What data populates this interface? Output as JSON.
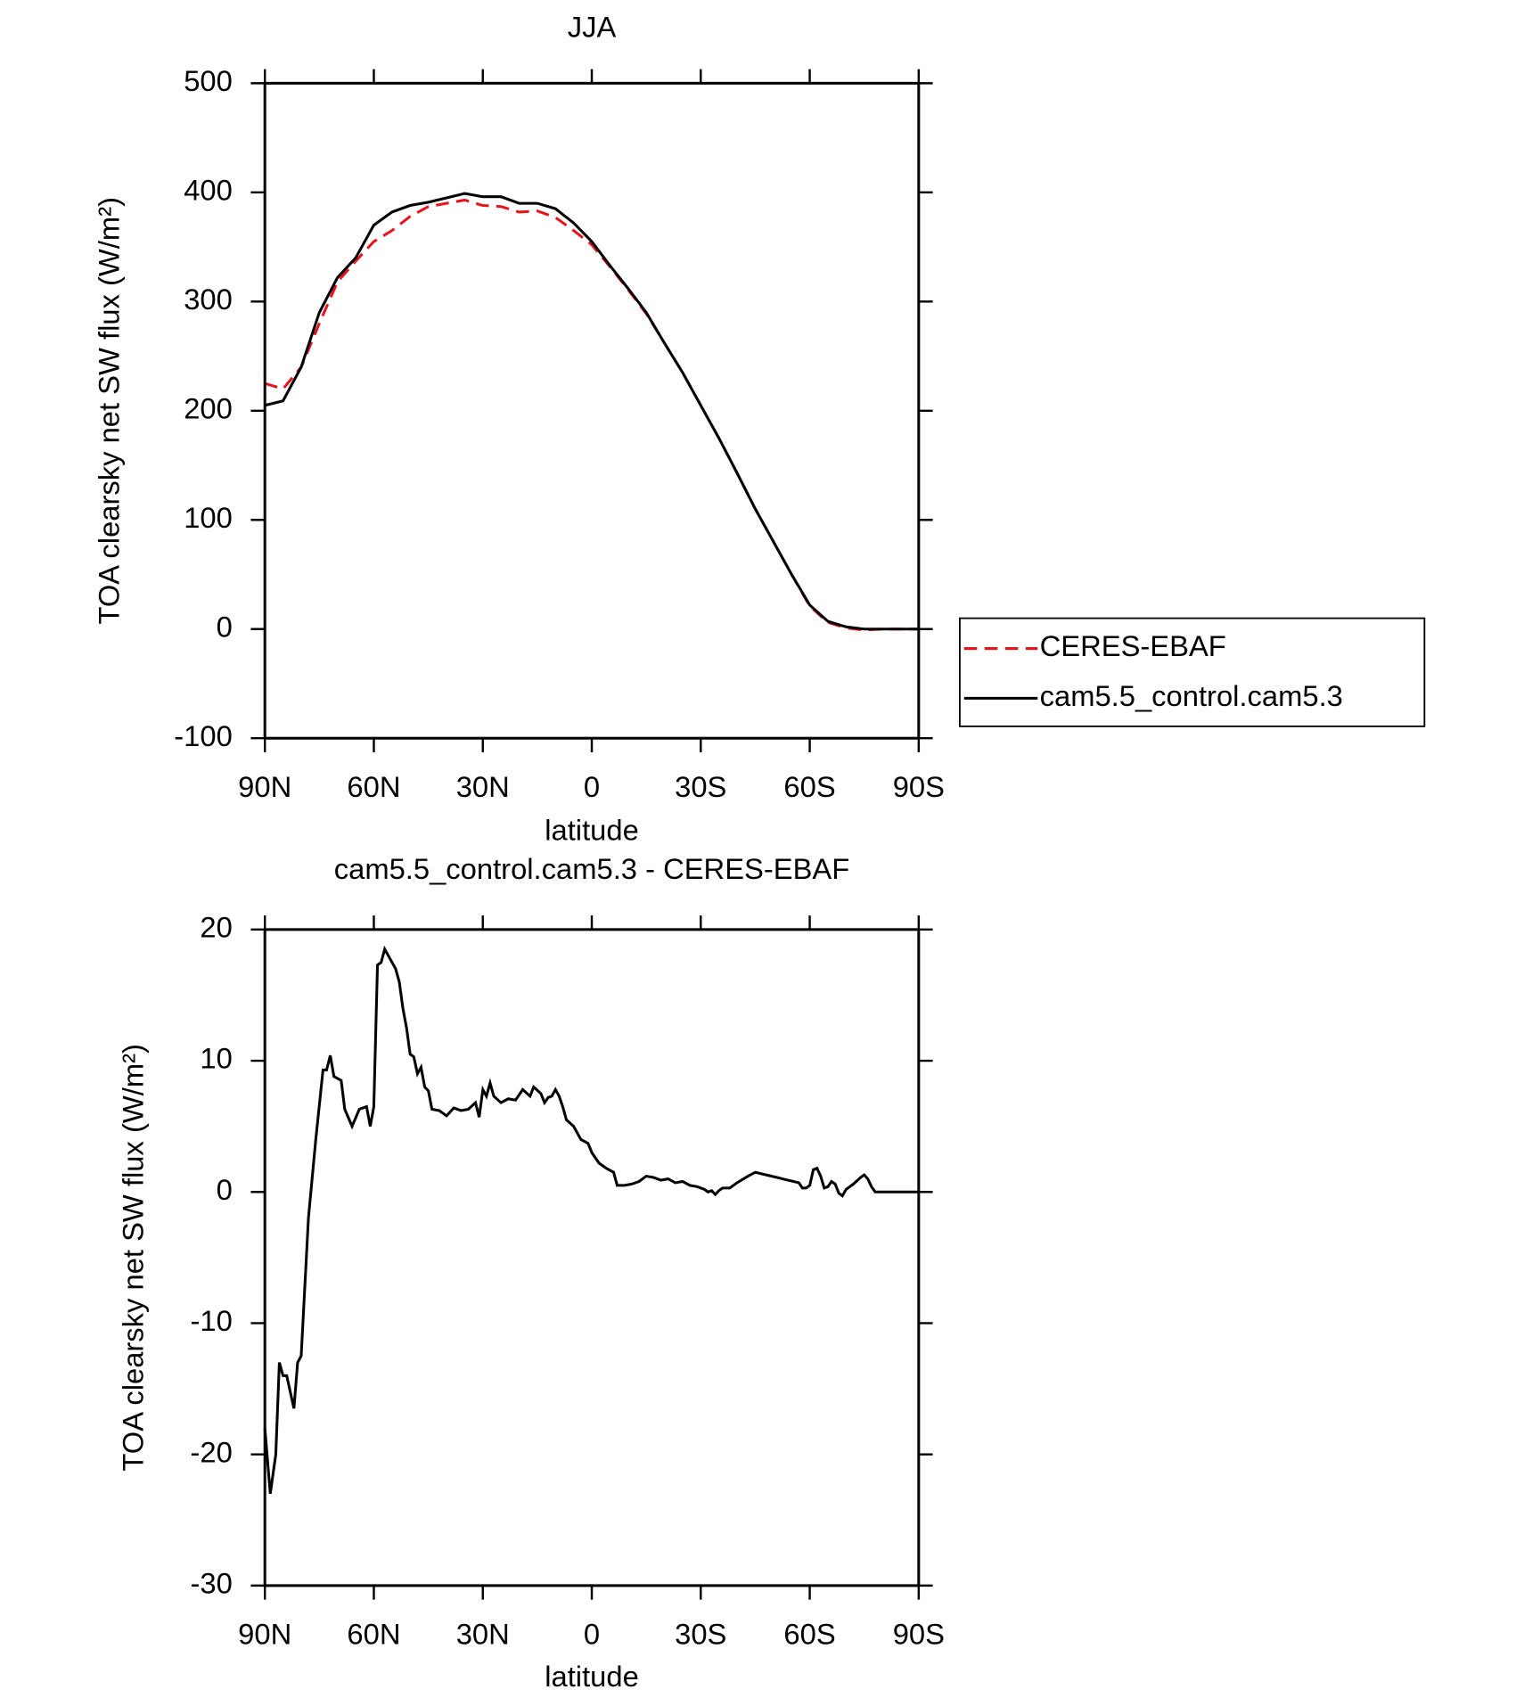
{
  "chart_data": [
    {
      "type": "line",
      "title": "JJA",
      "xlabel": "latitude",
      "ylabel": "TOA clearsky net SW flux (W/m²)",
      "x": [
        90,
        85,
        80,
        75,
        70,
        65,
        60,
        55,
        50,
        45,
        40,
        35,
        30,
        25,
        20,
        15,
        10,
        5,
        0,
        -5,
        -10,
        -15,
        -20,
        -25,
        -30,
        -35,
        -40,
        -45,
        -50,
        -55,
        -60,
        -65,
        -70,
        -75,
        -80,
        -85,
        -90
      ],
      "xlim": [
        90,
        -90
      ],
      "xticks": [
        {
          "value": 90,
          "label": "90N"
        },
        {
          "value": 60,
          "label": "60N"
        },
        {
          "value": 30,
          "label": "30N"
        },
        0,
        {
          "value": -30,
          "label": "30S"
        },
        {
          "value": -60,
          "label": "60S"
        },
        {
          "value": -90,
          "label": "90S"
        }
      ],
      "ylim": [
        -100,
        500
      ],
      "yticks": [
        -100,
        0,
        100,
        200,
        300,
        400,
        500
      ],
      "legend": "outside-right",
      "series": [
        {
          "name": "CERES-EBAF",
          "color": "#e8141c",
          "dash": true,
          "values": [
            225,
            220,
            240,
            280,
            318,
            337,
            355,
            365,
            378,
            387,
            390,
            393,
            388,
            387,
            382,
            383,
            377,
            365,
            352,
            332,
            311,
            289,
            262,
            235,
            205,
            175,
            143,
            110,
            80,
            50,
            21,
            6,
            1,
            -1,
            0,
            0,
            0
          ]
        },
        {
          "name": "cam5.5_control.cam5.3",
          "color": "#000000",
          "dash": false,
          "values": [
            205,
            209,
            240,
            290,
            322,
            340,
            370,
            382,
            388,
            391,
            395,
            399,
            396,
            396,
            390,
            390,
            385,
            372,
            355,
            333,
            312,
            290,
            262,
            235,
            205,
            175,
            143,
            110,
            80,
            50,
            22,
            7,
            2,
            0,
            0,
            0,
            0
          ]
        }
      ]
    },
    {
      "type": "line",
      "title": "cam5.5_control.cam5.3 - CERES-EBAF",
      "xlabel": "latitude",
      "ylabel": "TOA clearsky net SW flux (W/m²)",
      "x": [
        90,
        88.5,
        87,
        86,
        85,
        84,
        82,
        81,
        80,
        78,
        76,
        74,
        73,
        72,
        71,
        69,
        68,
        66,
        64,
        62,
        61,
        60,
        59,
        58,
        57,
        56,
        54,
        53,
        52,
        51,
        50,
        49,
        48,
        47,
        46,
        45,
        44,
        42,
        40,
        38,
        36,
        34,
        32,
        31,
        30,
        29,
        28,
        27,
        25,
        23,
        21,
        19,
        17,
        16,
        14,
        13,
        12,
        11,
        10,
        9,
        8,
        7,
        5,
        3,
        1,
        0,
        -2,
        -4,
        -6,
        -7,
        -9,
        -11,
        -13,
        -15,
        -17,
        -19,
        -21,
        -23,
        -25,
        -27,
        -29,
        -31,
        -32,
        -33,
        -34,
        -35,
        -36,
        -38,
        -40,
        -43,
        -45,
        -48,
        -51,
        -54,
        -57,
        -58,
        -59,
        -60,
        -61,
        -62,
        -63,
        -64,
        -65,
        -66,
        -67,
        -68,
        -69,
        -70,
        -72,
        -74,
        -75,
        -76,
        -77,
        -78,
        -80,
        -90
      ],
      "xlim": [
        90,
        -90
      ],
      "xticks": [
        {
          "value": 90,
          "label": "90N"
        },
        {
          "value": 60,
          "label": "60N"
        },
        {
          "value": 30,
          "label": "30N"
        },
        0,
        {
          "value": -30,
          "label": "30S"
        },
        {
          "value": -60,
          "label": "60S"
        },
        {
          "value": -90,
          "label": "90S"
        }
      ],
      "ylim": [
        -30,
        20
      ],
      "yticks": [
        -30,
        -20,
        -10,
        0,
        10,
        20
      ],
      "series": [
        {
          "color": "#000000",
          "values": [
            -18,
            -23,
            -20,
            -13,
            -14,
            -14,
            -16.5,
            -13,
            -12.5,
            -2,
            4,
            9.3,
            9.3,
            10.4,
            8.8,
            8.5,
            6.3,
            5,
            6.3,
            6.5,
            5,
            6.5,
            17.3,
            17.5,
            18.5,
            18,
            17,
            16,
            14,
            12.5,
            10.5,
            10.3,
            9,
            9.5,
            8,
            7.7,
            6.3,
            6.2,
            5.8,
            6.4,
            6.2,
            6.3,
            6.8,
            5.7,
            7.8,
            7.3,
            8.3,
            7.3,
            6.8,
            7.1,
            7,
            7.8,
            7.3,
            8,
            7.5,
            6.8,
            7.2,
            7.3,
            7.8,
            7.3,
            6.5,
            5.5,
            5,
            4,
            3.7,
            3,
            2.2,
            1.8,
            1.5,
            0.5,
            0.5,
            0.6,
            0.8,
            1.2,
            1.1,
            0.9,
            1,
            0.7,
            0.8,
            0.5,
            0.4,
            0.2,
            0,
            0.1,
            -0.2,
            0.1,
            0.3,
            0.3,
            0.7,
            1.2,
            1.5,
            1.3,
            1.1,
            0.9,
            0.7,
            0.3,
            0.3,
            0.5,
            1.7,
            1.8,
            1.2,
            0.3,
            0.4,
            0.8,
            0.6,
            -0.1,
            -0.3,
            0.2,
            0.6,
            1.1,
            1.3,
            1,
            0.4,
            0,
            0,
            0
          ]
        }
      ]
    }
  ]
}
